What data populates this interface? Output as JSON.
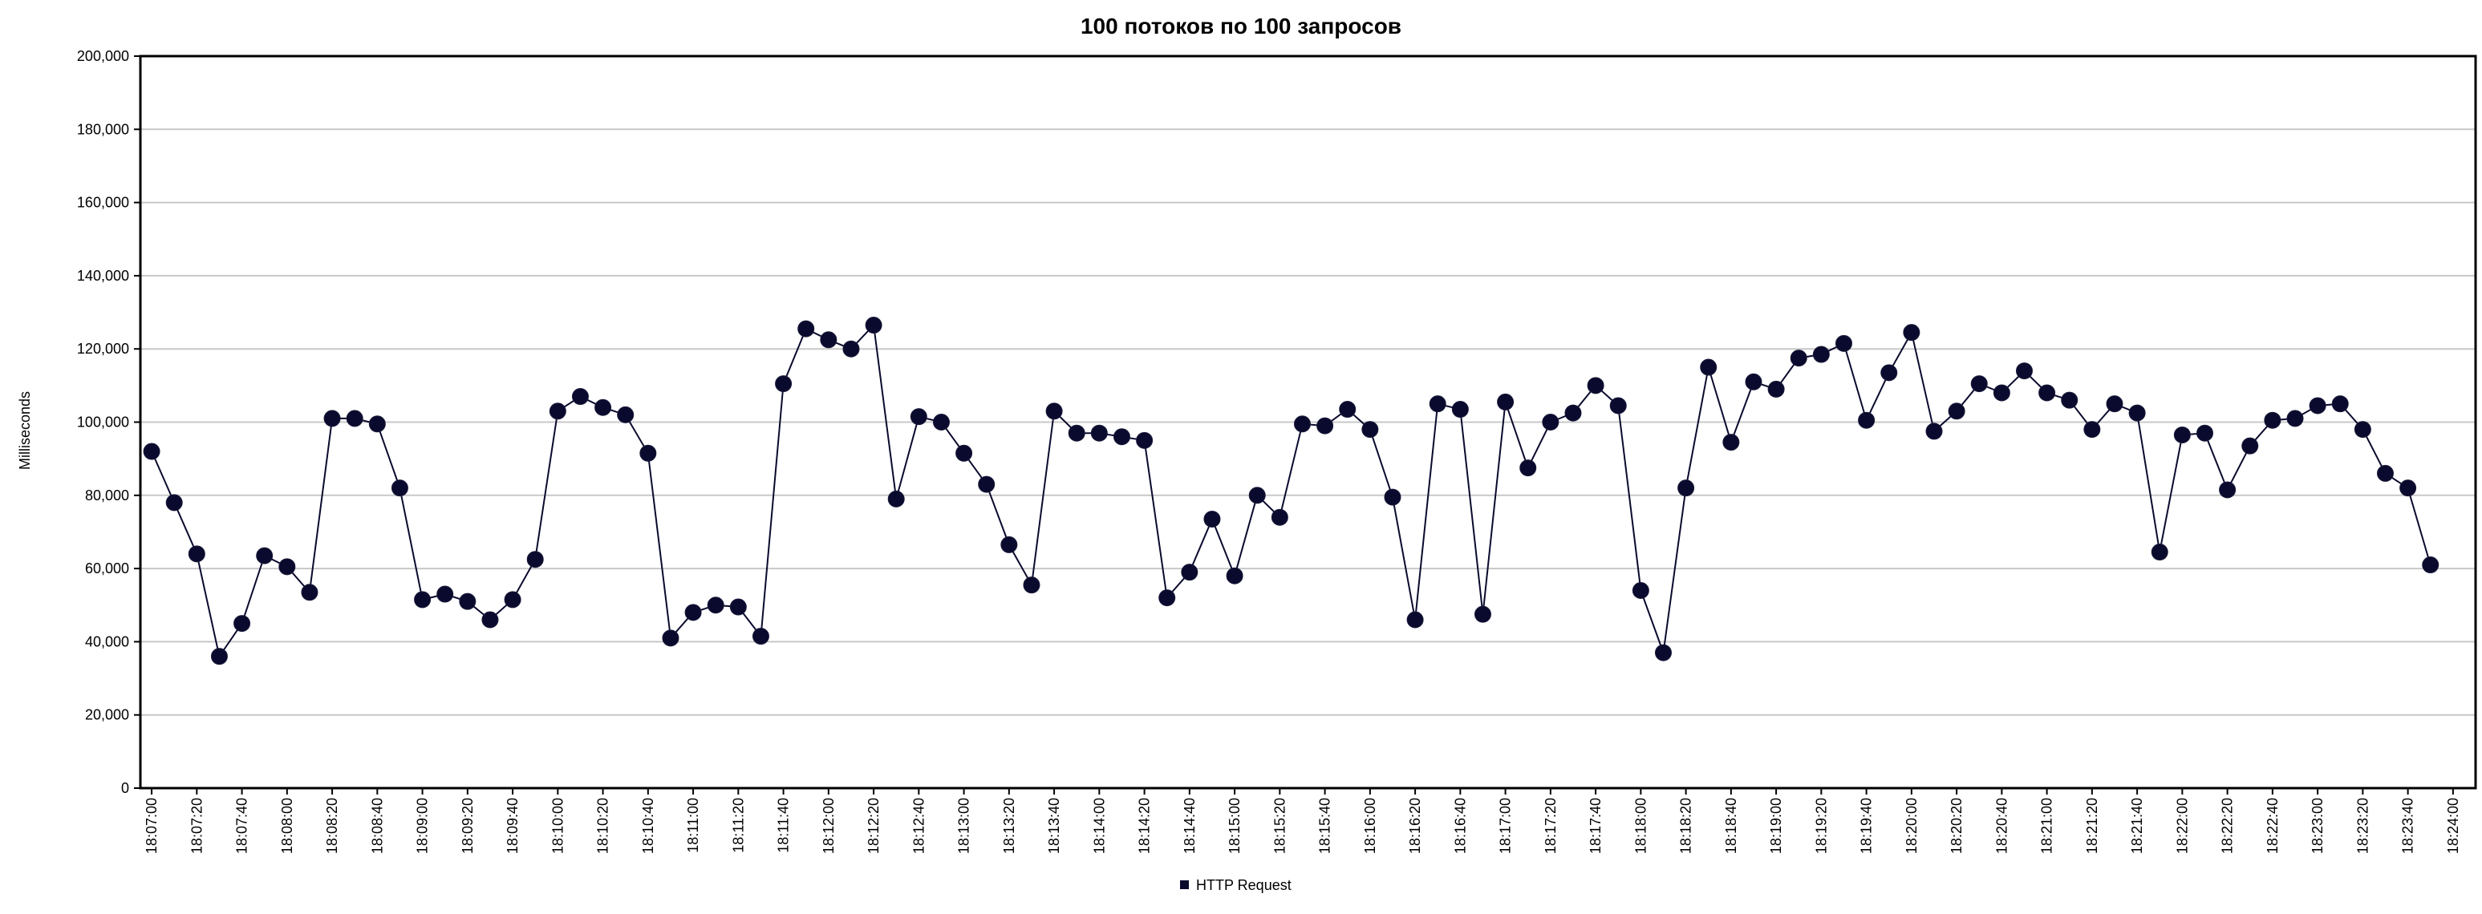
{
  "chart_data": {
    "type": "line",
    "title": "100 потоков по 100 запросов",
    "xlabel": "",
    "ylabel": "Milliseconds",
    "ylim": [
      0,
      200000
    ],
    "yticks": [
      0,
      20000,
      40000,
      60000,
      80000,
      100000,
      120000,
      140000,
      160000,
      180000,
      200000
    ],
    "ytick_labels": [
      "0",
      "20,000",
      "40,000",
      "60,000",
      "80,000",
      "100,000",
      "120,000",
      "140,000",
      "160,000",
      "180,000",
      "200,000"
    ],
    "xlim": [
      "18:06:55",
      "18:24:10"
    ],
    "xtick_labels": [
      "18:07:00",
      "18:07:20",
      "18:07:40",
      "18:08:00",
      "18:08:20",
      "18:08:40",
      "18:09:00",
      "18:09:20",
      "18:09:40",
      "18:10:00",
      "18:10:20",
      "18:10:40",
      "18:11:00",
      "18:11:20",
      "18:11:40",
      "18:12:00",
      "18:12:20",
      "18:12:40",
      "18:13:00",
      "18:13:20",
      "18:13:40",
      "18:14:00",
      "18:14:20",
      "18:14:40",
      "18:15:00",
      "18:15:20",
      "18:15:40",
      "18:16:00",
      "18:16:20",
      "18:16:40",
      "18:17:00",
      "18:17:20",
      "18:17:40",
      "18:18:00",
      "18:18:20",
      "18:18:40",
      "18:19:00",
      "18:19:20",
      "18:19:40",
      "18:20:00",
      "18:20:20",
      "18:20:40",
      "18:21:00",
      "18:21:20",
      "18:21:40",
      "18:22:00",
      "18:22:20",
      "18:22:40",
      "18:23:00",
      "18:23:20",
      "18:23:40",
      "18:24:00"
    ],
    "grid": true,
    "legend_position": "bottom-center",
    "series": [
      {
        "name": "HTTP Request",
        "color": "#0a0a2e",
        "x": [
          "18:07:00",
          "18:07:10",
          "18:07:20",
          "18:07:30",
          "18:07:40",
          "18:07:50",
          "18:08:00",
          "18:08:10",
          "18:08:20",
          "18:08:30",
          "18:08:40",
          "18:08:50",
          "18:09:00",
          "18:09:10",
          "18:09:20",
          "18:09:30",
          "18:09:40",
          "18:09:50",
          "18:10:00",
          "18:10:10",
          "18:10:20",
          "18:10:30",
          "18:10:40",
          "18:10:50",
          "18:11:00",
          "18:11:10",
          "18:11:20",
          "18:11:30",
          "18:11:40",
          "18:11:50",
          "18:12:00",
          "18:12:10",
          "18:12:20",
          "18:12:30",
          "18:12:40",
          "18:12:50",
          "18:13:00",
          "18:13:10",
          "18:13:20",
          "18:13:30",
          "18:13:40",
          "18:13:50",
          "18:14:00",
          "18:14:10",
          "18:14:20",
          "18:14:30",
          "18:14:40",
          "18:14:50",
          "18:15:00",
          "18:15:10",
          "18:15:20",
          "18:15:30",
          "18:15:40",
          "18:15:50",
          "18:16:00",
          "18:16:10",
          "18:16:20",
          "18:16:30",
          "18:16:40",
          "18:16:50",
          "18:17:00",
          "18:17:10",
          "18:17:20",
          "18:17:30",
          "18:17:40",
          "18:17:50",
          "18:18:00",
          "18:18:10",
          "18:18:20",
          "18:18:30",
          "18:18:40",
          "18:18:50",
          "18:19:00",
          "18:19:10",
          "18:19:20",
          "18:19:30",
          "18:19:40",
          "18:19:50",
          "18:20:00",
          "18:20:10",
          "18:20:20",
          "18:20:30",
          "18:20:40",
          "18:20:50",
          "18:21:00",
          "18:21:10",
          "18:21:20",
          "18:21:30",
          "18:21:40",
          "18:21:50",
          "18:22:00",
          "18:22:10",
          "18:22:20",
          "18:22:30",
          "18:22:40",
          "18:22:50",
          "18:23:00",
          "18:23:10",
          "18:23:20",
          "18:23:30",
          "18:23:40",
          "18:23:50"
        ],
        "y": [
          92000,
          78000,
          64000,
          36000,
          45000,
          63500,
          60500,
          53500,
          101000,
          101000,
          99500,
          82000,
          51500,
          53000,
          51000,
          46000,
          51500,
          62500,
          103000,
          107000,
          104000,
          102000,
          91500,
          41000,
          48000,
          50000,
          49500,
          41500,
          110500,
          125500,
          122500,
          120000,
          126500,
          79000,
          101500,
          100000,
          91500,
          83000,
          66500,
          55500,
          103000,
          97000,
          97000,
          96000,
          95000,
          52000,
          59000,
          73500,
          58000,
          80000,
          74000,
          99500,
          99000,
          103500,
          98000,
          79500,
          46000,
          105000,
          103500,
          47500,
          105500,
          87500,
          100000,
          102500,
          110000,
          104500,
          54000,
          37000,
          82000,
          115000,
          94500,
          111000,
          109000,
          117500,
          118500,
          121500,
          100500,
          113500,
          124500,
          97500,
          103000,
          110500,
          108000,
          114000,
          108000,
          106000,
          98000,
          105000,
          102500,
          64500,
          96500,
          97000,
          81500,
          93500,
          100500,
          101000,
          104500,
          105000,
          98000,
          86000,
          82000,
          61000
        ]
      }
    ]
  }
}
